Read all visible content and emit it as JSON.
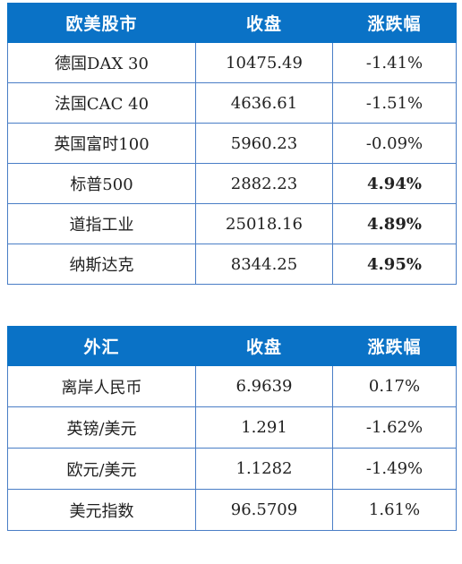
{
  "indices_table": {
    "headers": [
      "欧美股市",
      "收盘",
      "涨跌幅"
    ],
    "rows": [
      {
        "name": "德国DAX 30",
        "close": "10475.49",
        "change": "-1.41%"
      },
      {
        "name": "法国CAC 40",
        "close": "4636.61",
        "change": "-1.51%"
      },
      {
        "name": "英国富时100",
        "close": "5960.23",
        "change": "-0.09%"
      },
      {
        "name": "标普500",
        "close": "2882.23",
        "change": "4.94%"
      },
      {
        "name": "道指工业",
        "close": "25018.16",
        "change": "4.89%"
      },
      {
        "name": "纳斯达克",
        "close": "8344.25",
        "change": "4.95%"
      }
    ]
  },
  "fx_table": {
    "headers": [
      "外汇",
      "收盘",
      "涨跌幅"
    ],
    "rows": [
      {
        "name": "离岸人民币",
        "close": "6.9639",
        "change": "0.17%"
      },
      {
        "name": "英镑/美元",
        "close": "1.291",
        "change": "-1.62%"
      },
      {
        "name": "欧元/美元",
        "close": "1.1282",
        "change": "-1.49%"
      },
      {
        "name": "美元指数",
        "close": "96.5709",
        "change": "1.61%"
      }
    ]
  },
  "colors": {
    "header_bg": "#0a72c6",
    "header_text": "#ffffff",
    "border": "#4a7ec6",
    "negative": "#1e8a3a",
    "positive": "#e0141e"
  }
}
